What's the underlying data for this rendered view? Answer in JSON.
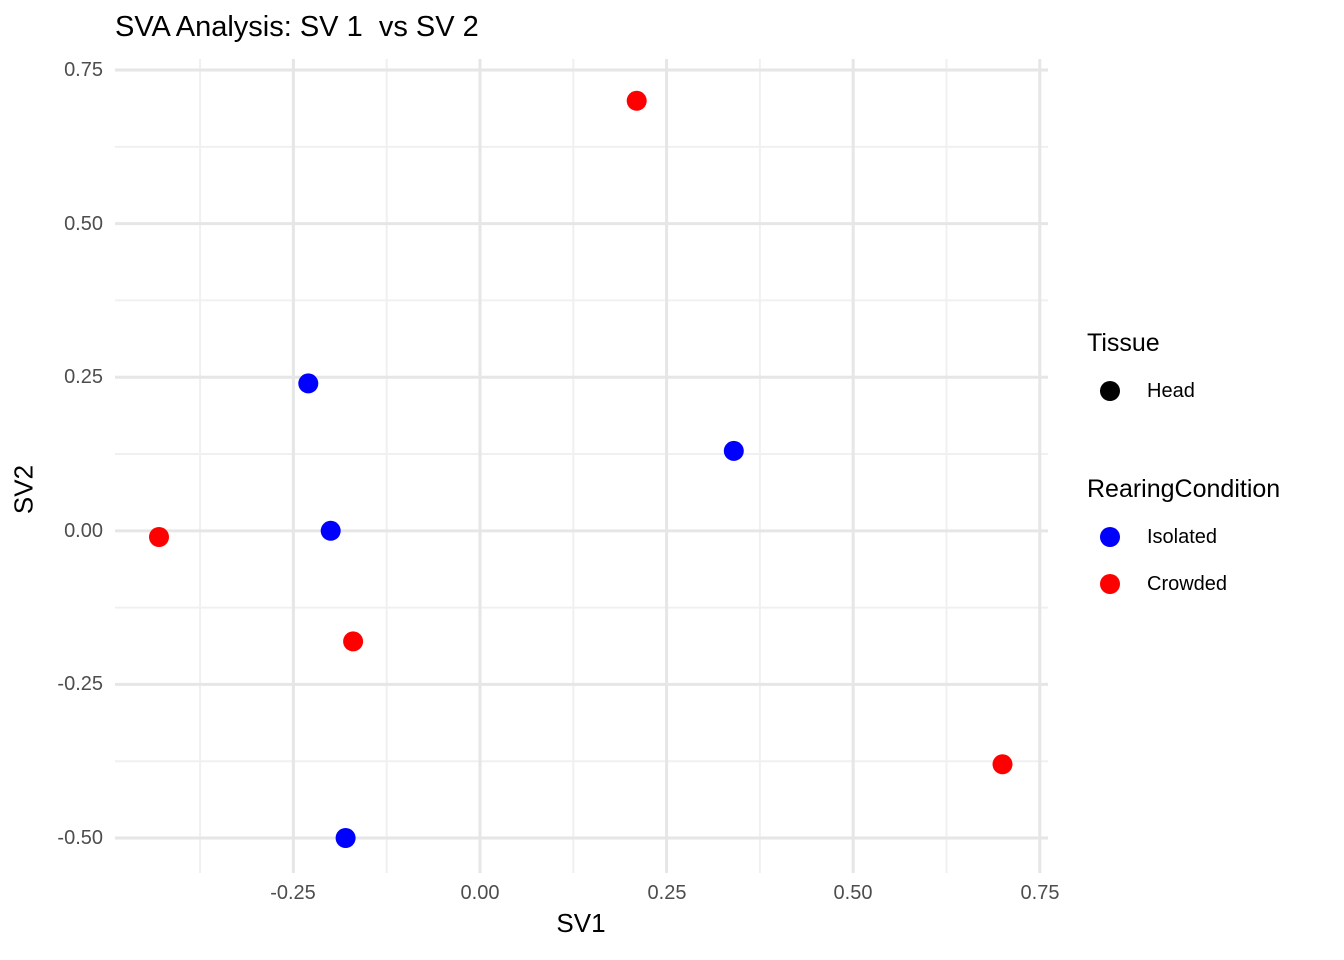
{
  "chart_data": {
    "type": "scatter",
    "title": "SVA Analysis: SV 1  vs SV 2",
    "xlabel": "SV1",
    "ylabel": "SV2",
    "xlim": [
      -0.489,
      0.761
    ],
    "ylim": [
      -0.557,
      0.768
    ],
    "x_ticks": {
      "values": [
        -0.25,
        0.0,
        0.25,
        0.5,
        0.75
      ],
      "labels": [
        "-0.25",
        "0.00",
        "0.25",
        "0.50",
        "0.75"
      ]
    },
    "y_ticks": {
      "values": [
        0.75,
        0.5,
        0.25,
        0.0,
        -0.25,
        -0.5
      ],
      "labels": [
        "0.75",
        "0.50",
        "0.25",
        "0.00",
        "-0.25",
        "-0.50"
      ]
    },
    "x_minor": [
      -0.375,
      -0.125,
      0.125,
      0.375,
      0.625
    ],
    "y_minor": [
      0.625,
      0.375,
      0.125,
      -0.125,
      -0.375
    ],
    "grid": {
      "on": true,
      "major_color": "#E6E6E6",
      "minor_color": "#F0F0F0",
      "background": "#FFFFFF"
    },
    "legend_position": "right",
    "series": [
      {
        "name": "Isolated",
        "color": "#0000FF",
        "points": [
          [
            -0.23,
            0.24
          ],
          [
            0.34,
            0.13
          ],
          [
            -0.2,
            0.0
          ],
          [
            -0.18,
            -0.5
          ]
        ]
      },
      {
        "name": "Crowded",
        "color": "#FF0000",
        "points": [
          [
            0.21,
            0.7
          ],
          [
            -0.43,
            -0.01
          ],
          [
            -0.17,
            -0.18
          ],
          [
            0.7,
            -0.38
          ]
        ]
      }
    ]
  },
  "legend": {
    "groups": [
      {
        "title": "Tissue",
        "items": [
          {
            "label": "Head",
            "color": "#000000"
          }
        ]
      },
      {
        "title": "RearingCondition",
        "items": [
          {
            "label": "Isolated",
            "color": "#0000FF"
          },
          {
            "label": "Crowded",
            "color": "#FF0000"
          }
        ]
      }
    ]
  }
}
